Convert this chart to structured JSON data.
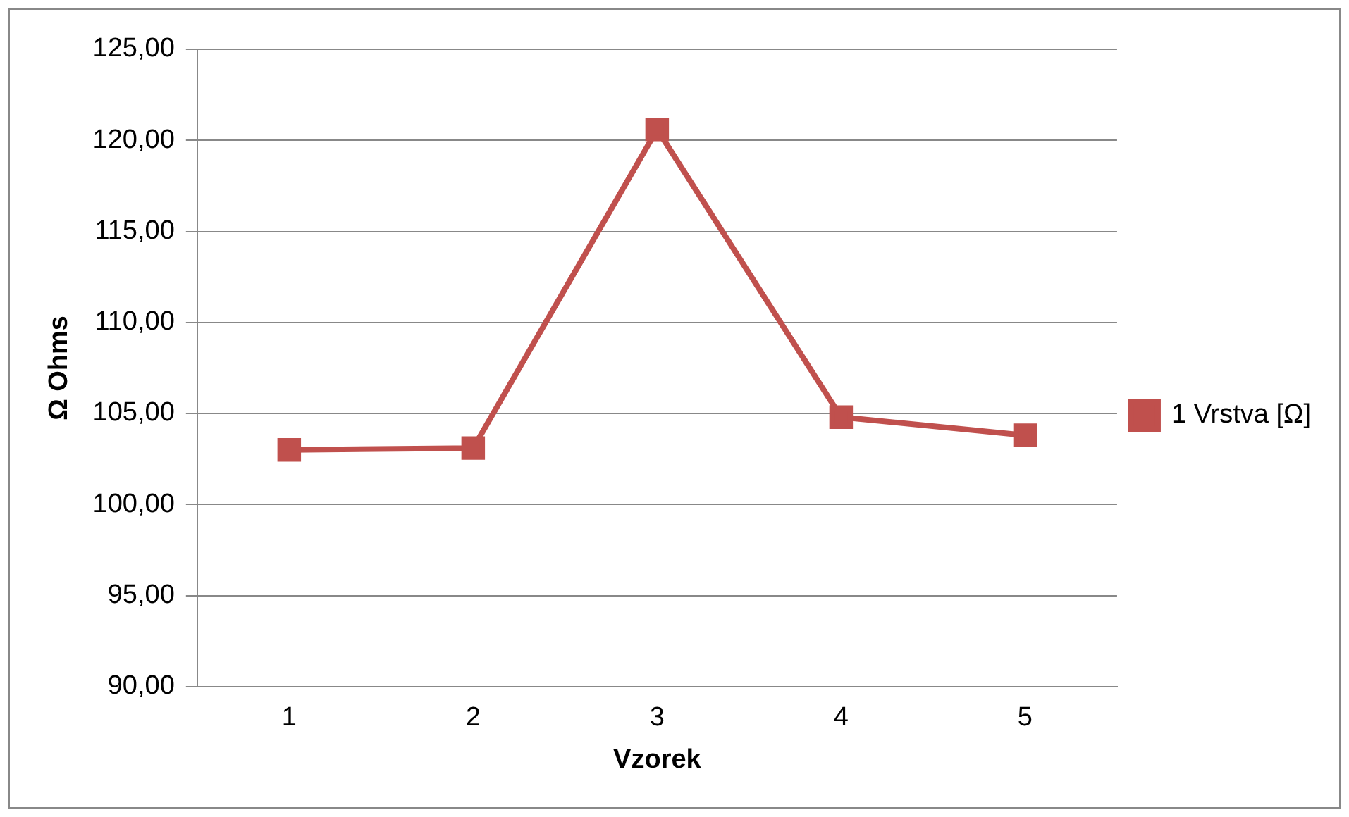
{
  "chart_data": {
    "type": "line",
    "xlabel": "Vzorek",
    "ylabel": "Ω Ohms",
    "categories": [
      "1",
      "2",
      "3",
      "4",
      "5"
    ],
    "series": [
      {
        "name": "1 Vrstva [Ω]",
        "color": "#c0504d",
        "values": [
          103.0,
          103.1,
          120.6,
          104.8,
          103.8
        ]
      }
    ],
    "ylim": [
      90,
      125
    ],
    "yticks": [
      {
        "value": 90,
        "label": "90,00"
      },
      {
        "value": 95,
        "label": "95,00"
      },
      {
        "value": 100,
        "label": "100,00"
      },
      {
        "value": 105,
        "label": "105,00"
      },
      {
        "value": 110,
        "label": "110,00"
      },
      {
        "value": 115,
        "label": "115,00"
      },
      {
        "value": 120,
        "label": "120,00"
      },
      {
        "value": 125,
        "label": "125,00"
      }
    ],
    "grid": "y",
    "legend": "right",
    "marker": "square",
    "line_style": "solid"
  }
}
